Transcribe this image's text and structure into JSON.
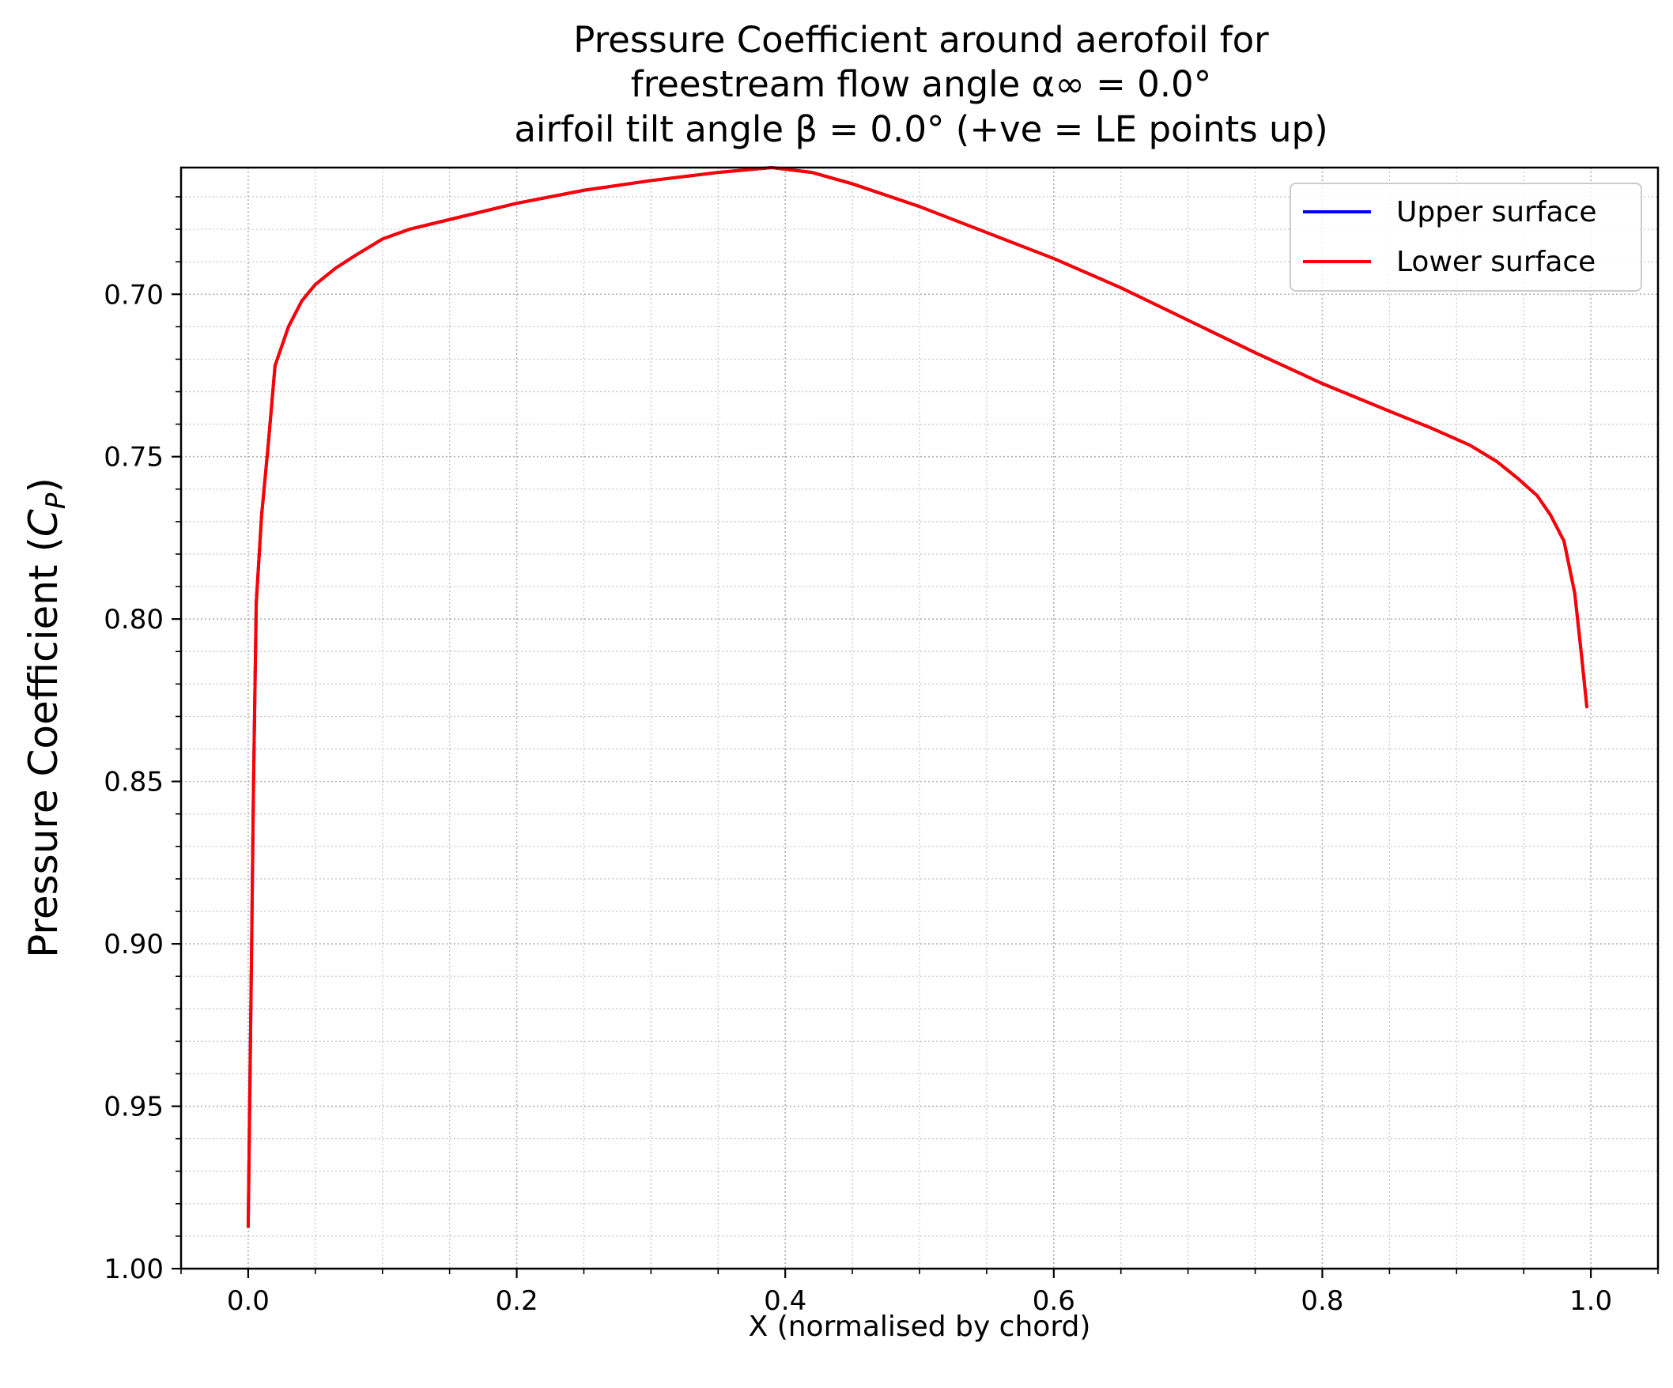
{
  "chart_data": {
    "type": "line",
    "title_lines": [
      "Pressure Coefficient around aerofoil for",
      "freestream flow angle α∞ = 0.0°",
      "airfoil tilt angle β = 0.0° (+ve = LE points up)"
    ],
    "xlabel": "X (normalised by chord)",
    "ylabel": "Pressure Coefficient (CP)",
    "xlim": [
      -0.05,
      1.05
    ],
    "ylim": [
      1.0,
      0.661
    ],
    "y_inverted": true,
    "x_ticks": [
      "0.0",
      "0.2",
      "0.4",
      "0.6",
      "0.8",
      "1.0"
    ],
    "y_ticks": [
      "0.70",
      "0.75",
      "0.80",
      "0.85",
      "0.90",
      "0.95",
      "1.00"
    ],
    "grid": "major and minor, dotted",
    "legend_position": "top-right",
    "series": [
      {
        "name": "Upper surface",
        "color": "#0000ff",
        "x": [
          0.0,
          0.002,
          0.004,
          0.006,
          0.01,
          0.015,
          0.02,
          0.03,
          0.04,
          0.05,
          0.065,
          0.08,
          0.1,
          0.12,
          0.15,
          0.2,
          0.25,
          0.3,
          0.35,
          0.39,
          0.42,
          0.45,
          0.5,
          0.55,
          0.6,
          0.65,
          0.7,
          0.75,
          0.8,
          0.85,
          0.88,
          0.91,
          0.93,
          0.945,
          0.96,
          0.97,
          0.98,
          0.988,
          0.993,
          0.997
        ],
        "y": [
          0.987,
          0.92,
          0.85,
          0.795,
          0.768,
          0.746,
          0.722,
          0.71,
          0.702,
          0.697,
          0.692,
          0.688,
          0.683,
          0.68,
          0.677,
          0.672,
          0.668,
          0.665,
          0.6625,
          0.661,
          0.6625,
          0.666,
          0.673,
          0.681,
          0.689,
          0.698,
          0.708,
          0.718,
          0.7275,
          0.736,
          0.741,
          0.7465,
          0.7515,
          0.7565,
          0.762,
          0.768,
          0.776,
          0.792,
          0.811,
          0.827
        ]
      },
      {
        "name": "Lower surface",
        "color": "#ff0000",
        "x": [
          0.0,
          0.002,
          0.004,
          0.006,
          0.01,
          0.015,
          0.02,
          0.03,
          0.04,
          0.05,
          0.065,
          0.08,
          0.1,
          0.12,
          0.15,
          0.2,
          0.25,
          0.3,
          0.35,
          0.39,
          0.42,
          0.45,
          0.5,
          0.55,
          0.6,
          0.65,
          0.7,
          0.75,
          0.8,
          0.85,
          0.88,
          0.91,
          0.93,
          0.945,
          0.96,
          0.97,
          0.98,
          0.988,
          0.993,
          0.997
        ],
        "y": [
          0.987,
          0.92,
          0.85,
          0.795,
          0.768,
          0.746,
          0.722,
          0.71,
          0.702,
          0.697,
          0.692,
          0.688,
          0.683,
          0.68,
          0.677,
          0.672,
          0.668,
          0.665,
          0.6625,
          0.661,
          0.6625,
          0.666,
          0.673,
          0.681,
          0.689,
          0.698,
          0.708,
          0.718,
          0.7275,
          0.736,
          0.741,
          0.7465,
          0.7515,
          0.7565,
          0.762,
          0.768,
          0.776,
          0.792,
          0.811,
          0.827
        ]
      }
    ]
  }
}
